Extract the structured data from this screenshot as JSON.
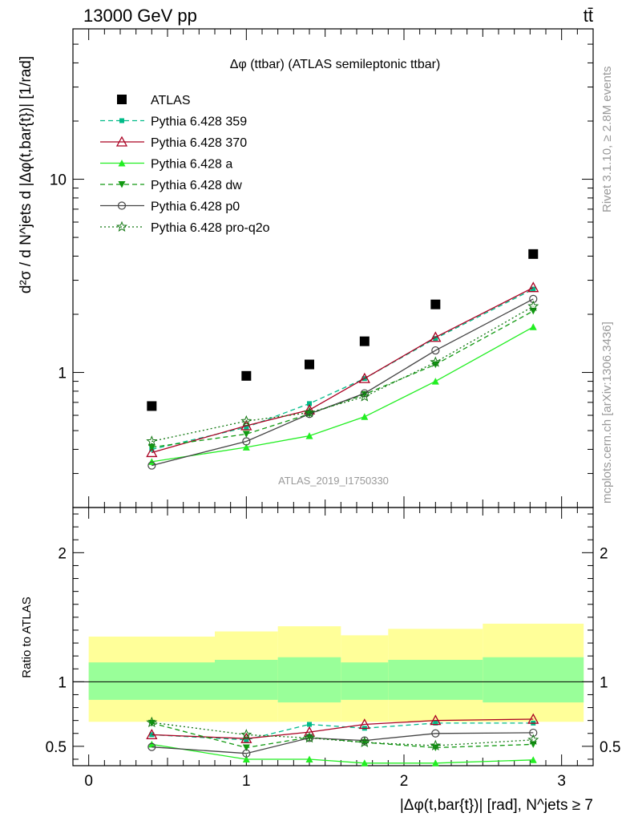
{
  "header": {
    "left": "13000 GeV pp",
    "right": "tt̄"
  },
  "side_labels": {
    "rivet": "Rivet 3.1.10, ≥ 2.8M events",
    "mcplots": "mcplots.cern.ch [arXiv:1306.3436]"
  },
  "watermark": "ATLAS_2019_I1750330",
  "colors": {
    "ATLAS": "#000000",
    "Pythia 6.428 359": "#00bb88",
    "Pythia 6.428 370": "#aa0022",
    "Pythia 6.428 a": "#22ee22",
    "Pythia 6.428 dw": "#119911",
    "Pythia 6.428 p0": "#444444",
    "Pythia 6.428 pro-q2o": "#117711",
    "band_inner": "#99ff99",
    "band_outer": "#ffff99"
  },
  "chart_data": [
    {
      "type": "line",
      "title": "Δφ (ttbar) (ATLAS semileptonic ttbar)",
      "ylabel": "d²σ / d N^jets d |Δφ(t,bar{t})| [1/rad]",
      "yscale": "log",
      "xlim": [
        -0.1,
        3.2
      ],
      "ylim": [
        0.2,
        60
      ],
      "yticks": [
        {
          "v": 1,
          "label": "1"
        },
        {
          "v": 10,
          "label": "10"
        }
      ],
      "legend_position": "top-left",
      "x": [
        0.4,
        1.0,
        1.4,
        1.75,
        2.2,
        2.82
      ],
      "series": [
        {
          "name": "ATLAS",
          "marker": "square",
          "line": "none",
          "values": [
            0.67,
            0.96,
            1.1,
            1.45,
            2.25,
            4.1
          ]
        },
        {
          "name": "Pythia 6.428 359",
          "marker": "square-small",
          "line": "dashed",
          "values": [
            0.4,
            0.52,
            0.69,
            0.93,
            1.5,
            2.7
          ]
        },
        {
          "name": "Pythia 6.428 370",
          "marker": "triangle-open",
          "line": "solid",
          "values": [
            0.385,
            0.53,
            0.64,
            0.93,
            1.52,
            2.75
          ]
        },
        {
          "name": "Pythia 6.428 a",
          "marker": "triangle",
          "line": "solid",
          "values": [
            0.345,
            0.41,
            0.47,
            0.59,
            0.9,
            1.72
          ]
        },
        {
          "name": "Pythia 6.428 dw",
          "marker": "triangle-down",
          "line": "dashed",
          "values": [
            0.41,
            0.48,
            0.61,
            0.77,
            1.1,
            2.08
          ]
        },
        {
          "name": "Pythia 6.428 p0",
          "marker": "circle-open",
          "line": "solid",
          "values": [
            0.33,
            0.44,
            0.61,
            0.78,
            1.3,
            2.4
          ]
        },
        {
          "name": "Pythia 6.428 pro-q2o",
          "marker": "star",
          "line": "dotted",
          "values": [
            0.44,
            0.56,
            0.62,
            0.75,
            1.13,
            2.2
          ]
        }
      ]
    },
    {
      "type": "line",
      "ylabel": "Ratio to ATLAS",
      "xlabel": "|Δφ(t,bar{t})| [rad], N^jets ≥ 7",
      "xlim": [
        -0.1,
        3.2
      ],
      "ylim": [
        0.35,
        2.35
      ],
      "yticks": [
        {
          "v": 0.5,
          "label": "0.5"
        },
        {
          "v": 1,
          "label": "1"
        },
        {
          "v": 2,
          "label": "2"
        }
      ],
      "xticks": [
        {
          "v": 0,
          "label": "0"
        },
        {
          "v": 1,
          "label": "1"
        },
        {
          "v": 2,
          "label": "2"
        },
        {
          "v": 3,
          "label": "3"
        }
      ],
      "bins": [
        [
          0,
          0.8
        ],
        [
          0.8,
          1.2
        ],
        [
          1.2,
          1.6
        ],
        [
          1.6,
          1.9
        ],
        [
          1.9,
          2.5
        ],
        [
          2.5,
          3.14
        ]
      ],
      "band_inner": [
        [
          0.86,
          1.15
        ],
        [
          0.86,
          1.17
        ],
        [
          0.84,
          1.19
        ],
        [
          0.86,
          1.15
        ],
        [
          0.86,
          1.17
        ],
        [
          0.84,
          1.19
        ]
      ],
      "band_outer": [
        [
          0.69,
          1.35
        ],
        [
          0.69,
          1.39
        ],
        [
          0.69,
          1.43
        ],
        [
          0.69,
          1.36
        ],
        [
          0.69,
          1.41
        ],
        [
          0.69,
          1.45
        ]
      ],
      "x": [
        0.4,
        1.0,
        1.4,
        1.75,
        2.2,
        2.82
      ],
      "series": [
        {
          "name": "Pythia 6.428 359",
          "values": [
            0.59,
            0.55,
            0.67,
            0.64,
            0.68,
            0.68
          ]
        },
        {
          "name": "Pythia 6.428 370",
          "values": [
            0.59,
            0.56,
            0.61,
            0.67,
            0.7,
            0.71
          ]
        },
        {
          "name": "Pythia 6.428 a",
          "values": [
            0.515,
            0.4,
            0.4,
            0.37,
            0.37,
            0.395
          ]
        },
        {
          "name": "Pythia 6.428 dw",
          "values": [
            0.68,
            0.49,
            0.57,
            0.53,
            0.49,
            0.515
          ]
        },
        {
          "name": "Pythia 6.428 p0",
          "values": [
            0.495,
            0.445,
            0.565,
            0.545,
            0.6,
            0.605
          ]
        },
        {
          "name": "Pythia 6.428 pro-q2o",
          "values": [
            0.685,
            0.59,
            0.565,
            0.53,
            0.505,
            0.55
          ]
        }
      ]
    }
  ]
}
